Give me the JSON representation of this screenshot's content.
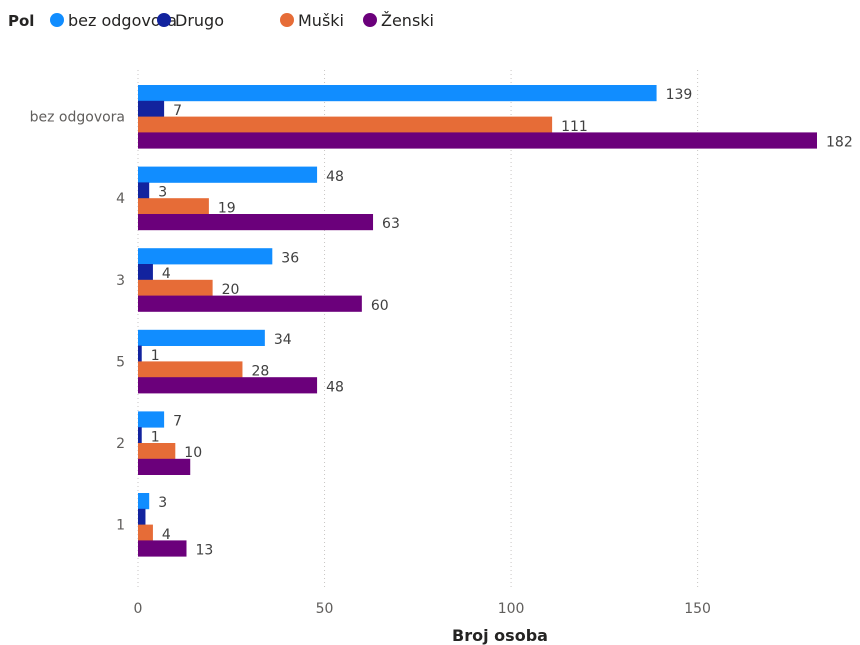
{
  "chart_data": {
    "type": "bar",
    "orientation": "horizontal",
    "legend": {
      "title": "Pol",
      "position": "top-left"
    },
    "categories": [
      "bez odgovora",
      "4",
      "3",
      "5",
      "2",
      "1"
    ],
    "series": [
      {
        "name": "bez odgovora",
        "color": "#118dff",
        "values": [
          139,
          48,
          36,
          34,
          7,
          3
        ]
      },
      {
        "name": "Drugo",
        "color": "#12239e",
        "values": [
          7,
          3,
          4,
          1,
          1,
          2
        ]
      },
      {
        "name": "Muški",
        "color": "#e66c37",
        "values": [
          111,
          19,
          20,
          28,
          10,
          4
        ]
      },
      {
        "name": "Ženski",
        "color": "#6b007b",
        "values": [
          182,
          63,
          60,
          48,
          14,
          13
        ]
      }
    ],
    "data_labels": [
      [
        "139",
        "48",
        "36",
        "34",
        "7",
        "3"
      ],
      [
        "7",
        "3",
        "4",
        "1",
        "1",
        ""
      ],
      [
        "111",
        "19",
        "20",
        "28",
        "10",
        "4"
      ],
      [
        "182",
        "63",
        "60",
        "48",
        "",
        "13"
      ]
    ],
    "xlabel": "Broj osoba",
    "ylabel": "",
    "xlim": [
      0,
      182
    ],
    "xticks": [
      0,
      50,
      100,
      150
    ],
    "grid": "vertical-dotted"
  }
}
